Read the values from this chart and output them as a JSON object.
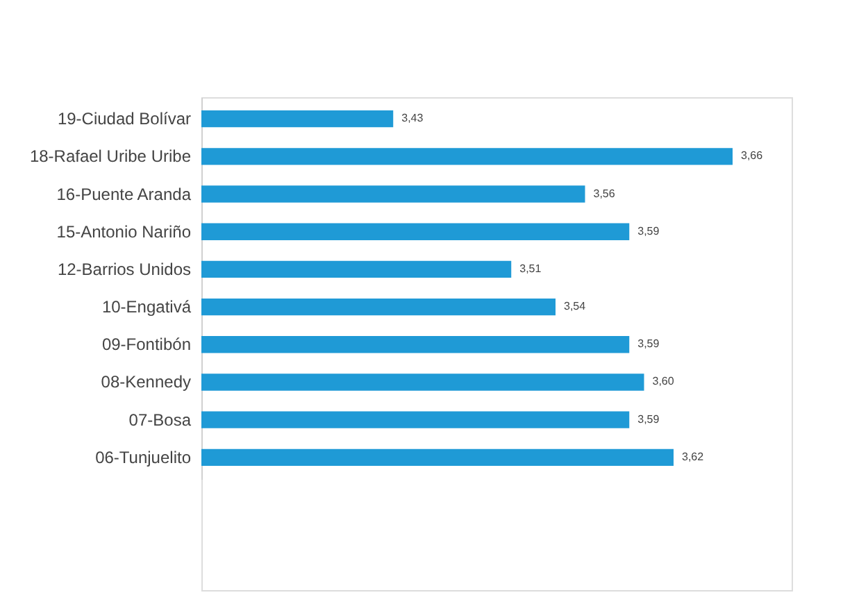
{
  "chart_data": {
    "type": "bar",
    "orientation": "horizontal",
    "categories": [
      "19-Ciudad Bolívar",
      "18-Rafael Uribe Uribe",
      "16-Puente Aranda",
      "15-Antonio Nariño",
      "12-Barrios Unidos",
      "10-Engativá",
      "09-Fontibón",
      "08-Kennedy",
      "07-Bosa",
      "06-Tunjuelito"
    ],
    "values": [
      3.43,
      3.66,
      3.56,
      3.59,
      3.51,
      3.54,
      3.59,
      3.6,
      3.59,
      3.62
    ],
    "value_labels": [
      "3,43",
      "3,66",
      "3,56",
      "3,59",
      "3,51",
      "3,54",
      "3,59",
      "3,60",
      "3,59",
      "3,62"
    ],
    "color": "#1f9ad6",
    "xlim": [
      3.3,
      3.7
    ],
    "tick_labels": "y",
    "grid": false
  }
}
